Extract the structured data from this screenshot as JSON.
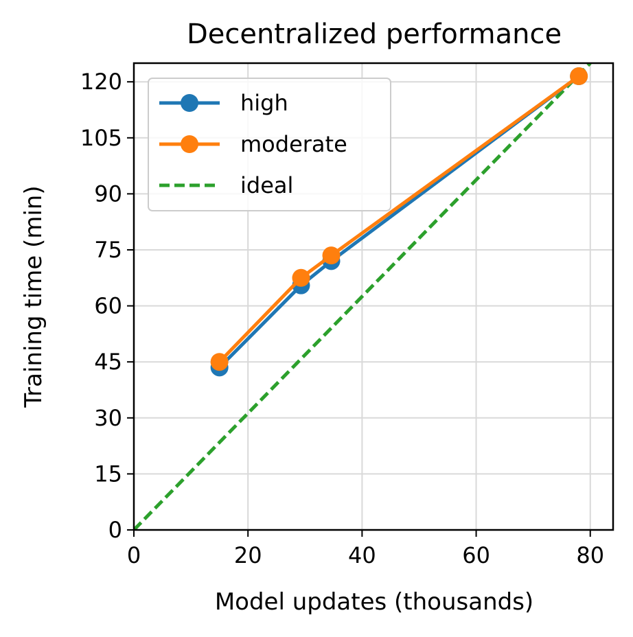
{
  "chart_data": {
    "type": "line",
    "title": "Decentralized performance",
    "xlabel": "Model updates (thousands)",
    "ylabel": "Training time (min)",
    "xlim": [
      0,
      84
    ],
    "ylim": [
      0,
      125
    ],
    "xticks": [
      "0",
      "20",
      "40",
      "60",
      "80"
    ],
    "yticks": [
      "0",
      "15",
      "30",
      "45",
      "60",
      "75",
      "90",
      "105",
      "120"
    ],
    "grid": true,
    "legend_position": "top-left",
    "series": [
      {
        "name": "high",
        "color": "#1f77b4",
        "style": "solid",
        "marker": "circle",
        "x": [
          15,
          29.3,
          34.6,
          78
        ],
        "y": [
          43.5,
          65.5,
          72,
          121.5
        ]
      },
      {
        "name": "moderate",
        "color": "#ff7f0e",
        "style": "solid",
        "marker": "circle",
        "x": [
          15,
          29.3,
          34.6,
          78
        ],
        "y": [
          45,
          67.5,
          73.5,
          121.5
        ]
      },
      {
        "name": "ideal",
        "color": "#2ca02c",
        "style": "dashed",
        "marker": "none",
        "x": [
          0,
          80
        ],
        "y": [
          0,
          125
        ]
      }
    ]
  }
}
